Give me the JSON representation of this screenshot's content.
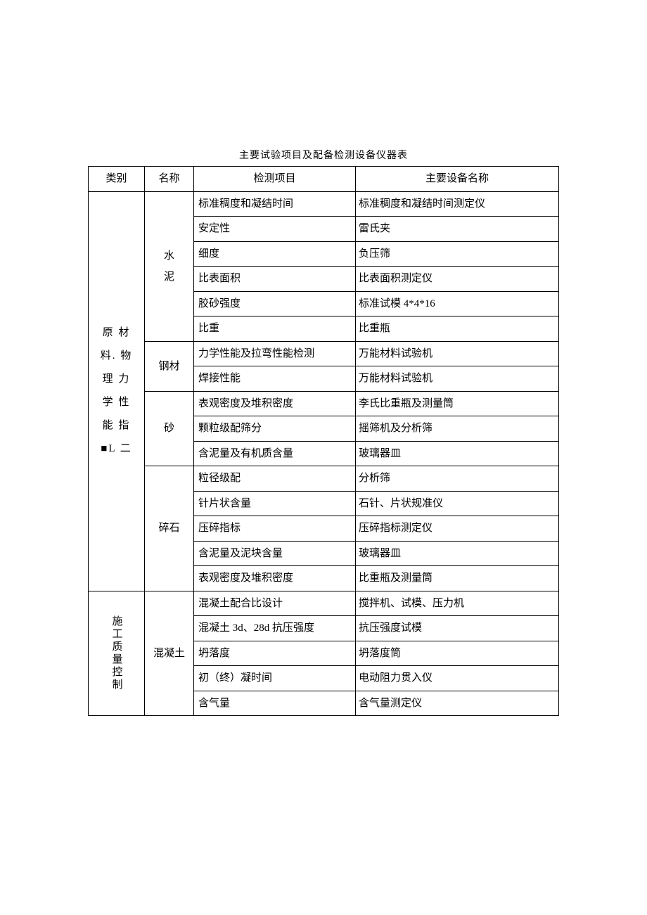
{
  "title": "主要试验项目及配备检测设备仪器表",
  "headers": {
    "category": "类别",
    "name": "名称",
    "test_item": "检测项目",
    "equipment": "主要设备名称"
  },
  "categories": [
    {
      "label": "原 材\n料. 物\n理 力\n学 性\n能 指\n■L 二",
      "groups": [
        {
          "name": "水\n泥",
          "rows": [
            {
              "item": "标准稠度和凝结时间",
              "equip": "标准稠度和凝结时间测定仪"
            },
            {
              "item": "安定性",
              "equip": "雷氏夹"
            },
            {
              "item": "细度",
              "equip": "负压筛"
            },
            {
              "item": "比表面积",
              "equip": "比表面积测定仪"
            },
            {
              "item": "胶砂强度",
              "equip": "标准试模 4*4*16"
            },
            {
              "item": "比重",
              "equip": "比重瓶"
            }
          ]
        },
        {
          "name": "钢材",
          "rows": [
            {
              "item": "力学性能及拉弯性能检测",
              "equip": "万能材料试验机"
            },
            {
              "item": "焊接性能",
              "equip": "万能材料试验机"
            }
          ]
        },
        {
          "name": "砂",
          "rows": [
            {
              "item": "表观密度及堆积密度",
              "equip": "李氏比重瓶及测量筒"
            },
            {
              "item": "颗粒级配筛分",
              "equip": "摇筛机及分析筛"
            },
            {
              "item": "含泥量及有机质含量",
              "equip": "玻璃器皿"
            }
          ]
        },
        {
          "name": "碎石",
          "rows": [
            {
              "item": "粒径级配",
              "equip": "分析筛"
            },
            {
              "item": "针片状含量",
              "equip": "石针、片状规准仪"
            },
            {
              "item": "压碎指标",
              "equip": "压碎指标测定仪"
            },
            {
              "item": "含泥量及泥块含量",
              "equip": "玻璃器皿"
            },
            {
              "item": "表观密度及堆积密度",
              "equip": "比重瓶及测量筒"
            }
          ]
        }
      ]
    },
    {
      "label": "施工质量控制",
      "groups": [
        {
          "name": "混凝土",
          "rows": [
            {
              "item": "混凝土配合比设计",
              "equip": "搅拌机、试模、压力机"
            },
            {
              "item": "混凝土 3d、28d 抗压强度",
              "equip": "抗压强度试模"
            },
            {
              "item": "坍落度",
              "equip": "坍落度筒"
            },
            {
              "item": "初（终）凝时间",
              "equip": "电动阻力贯入仪"
            },
            {
              "item": "含气量",
              "equip": "含气量测定仪"
            }
          ]
        }
      ]
    }
  ]
}
